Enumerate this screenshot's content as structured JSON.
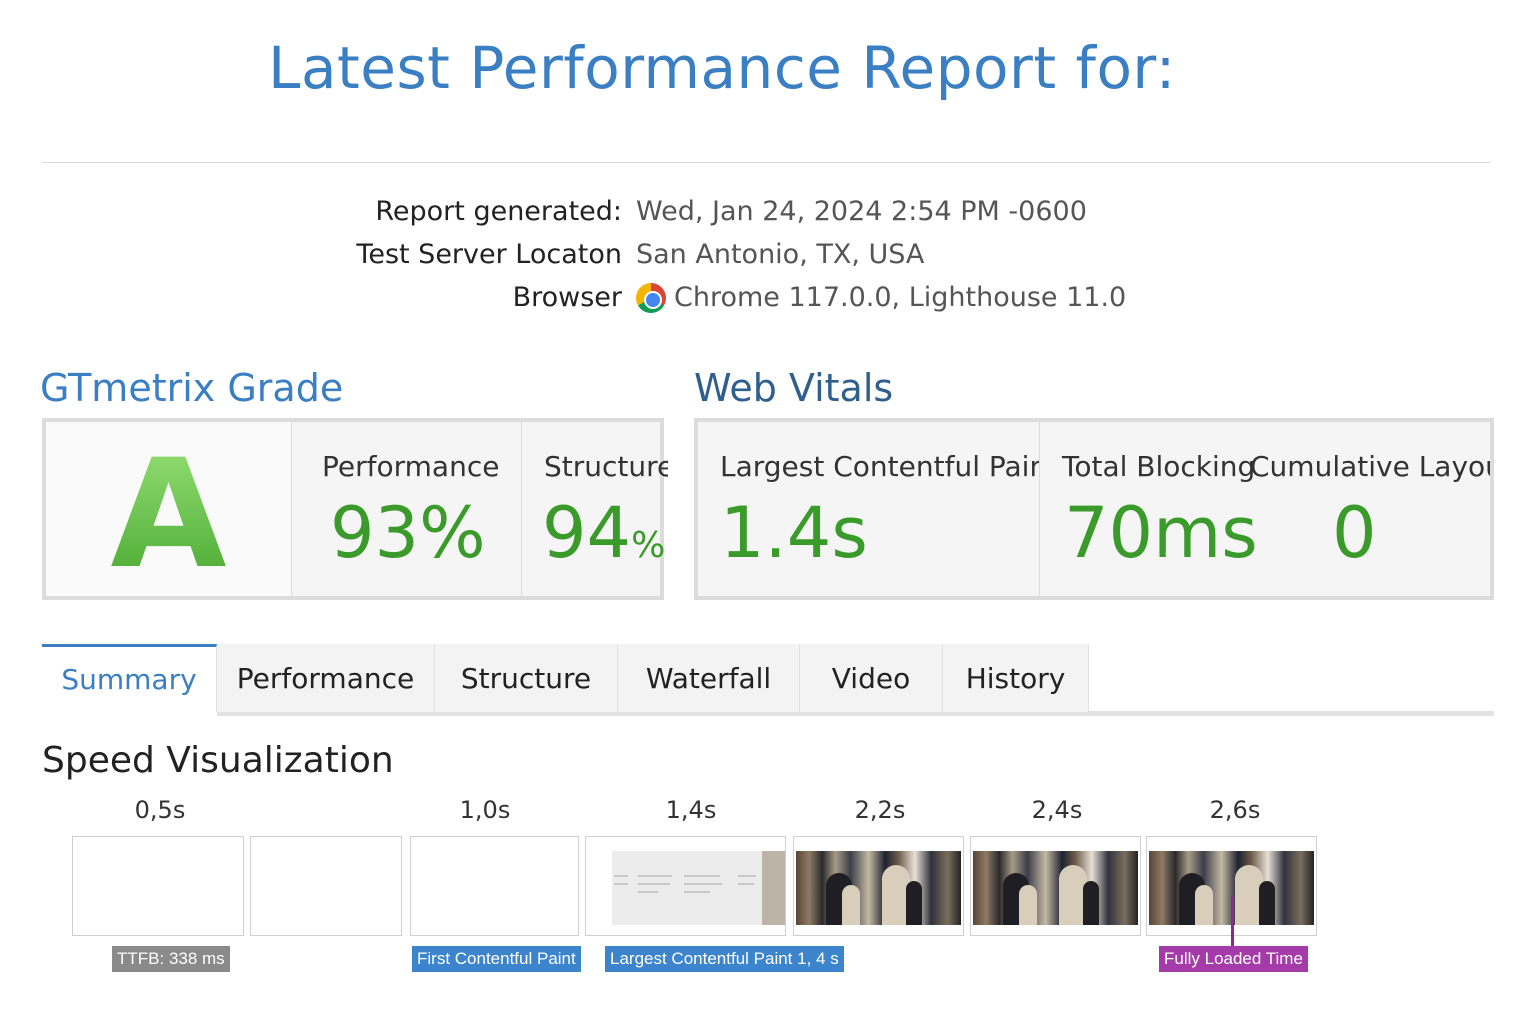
{
  "header": {
    "title": "Latest Performance Report for:"
  },
  "meta": {
    "generated_label": "Report generated:",
    "generated_value": "Wed, Jan 24, 2024 2:54 PM -0600",
    "location_label": "Test Server Locaton",
    "location_value": "San Antonio, TX, USA",
    "browser_label": "Browser",
    "browser_value": "Chrome 117.0.0, Lighthouse 11.0",
    "browser_icon": "chrome-icon"
  },
  "grade": {
    "title": "GTmetrix Grade",
    "letter": "A",
    "performance_label": "Performance",
    "performance_value": "93%",
    "structure_label": "Structure",
    "structure_value": "94",
    "structure_unit": "%"
  },
  "vitals": {
    "title": "Web Vitals",
    "lcp_label": "Largest Contentful Paint",
    "lcp_value": "1.4s",
    "tbt_label": "Total Blocking",
    "tbt_value": "70ms",
    "cls_label": "Cumulative Layout",
    "cls_value": "0"
  },
  "tabs": [
    "Summary",
    "Performance",
    "Structure",
    "Waterfall",
    "Video",
    "History"
  ],
  "active_tab": "Summary",
  "speed": {
    "title": "Speed Visualization",
    "times": [
      "0,5s",
      "1,0s",
      "1,4s",
      "2,2s",
      "2,4s",
      "2,6s"
    ],
    "markers": {
      "ttfb": "TTFB: 338 ms",
      "fcp": "First Contentful Paint",
      "lcp": "Largest Contentful Paint 1, 4 s",
      "fully_loaded": "Fully Loaded Time"
    }
  },
  "colors": {
    "accent": "#3a7ec4",
    "grade_green": "#43a52c",
    "ttfb_marker": "#8a8a8a",
    "paint_marker": "#3c84cc",
    "loaded_marker": "#a43ba8"
  }
}
